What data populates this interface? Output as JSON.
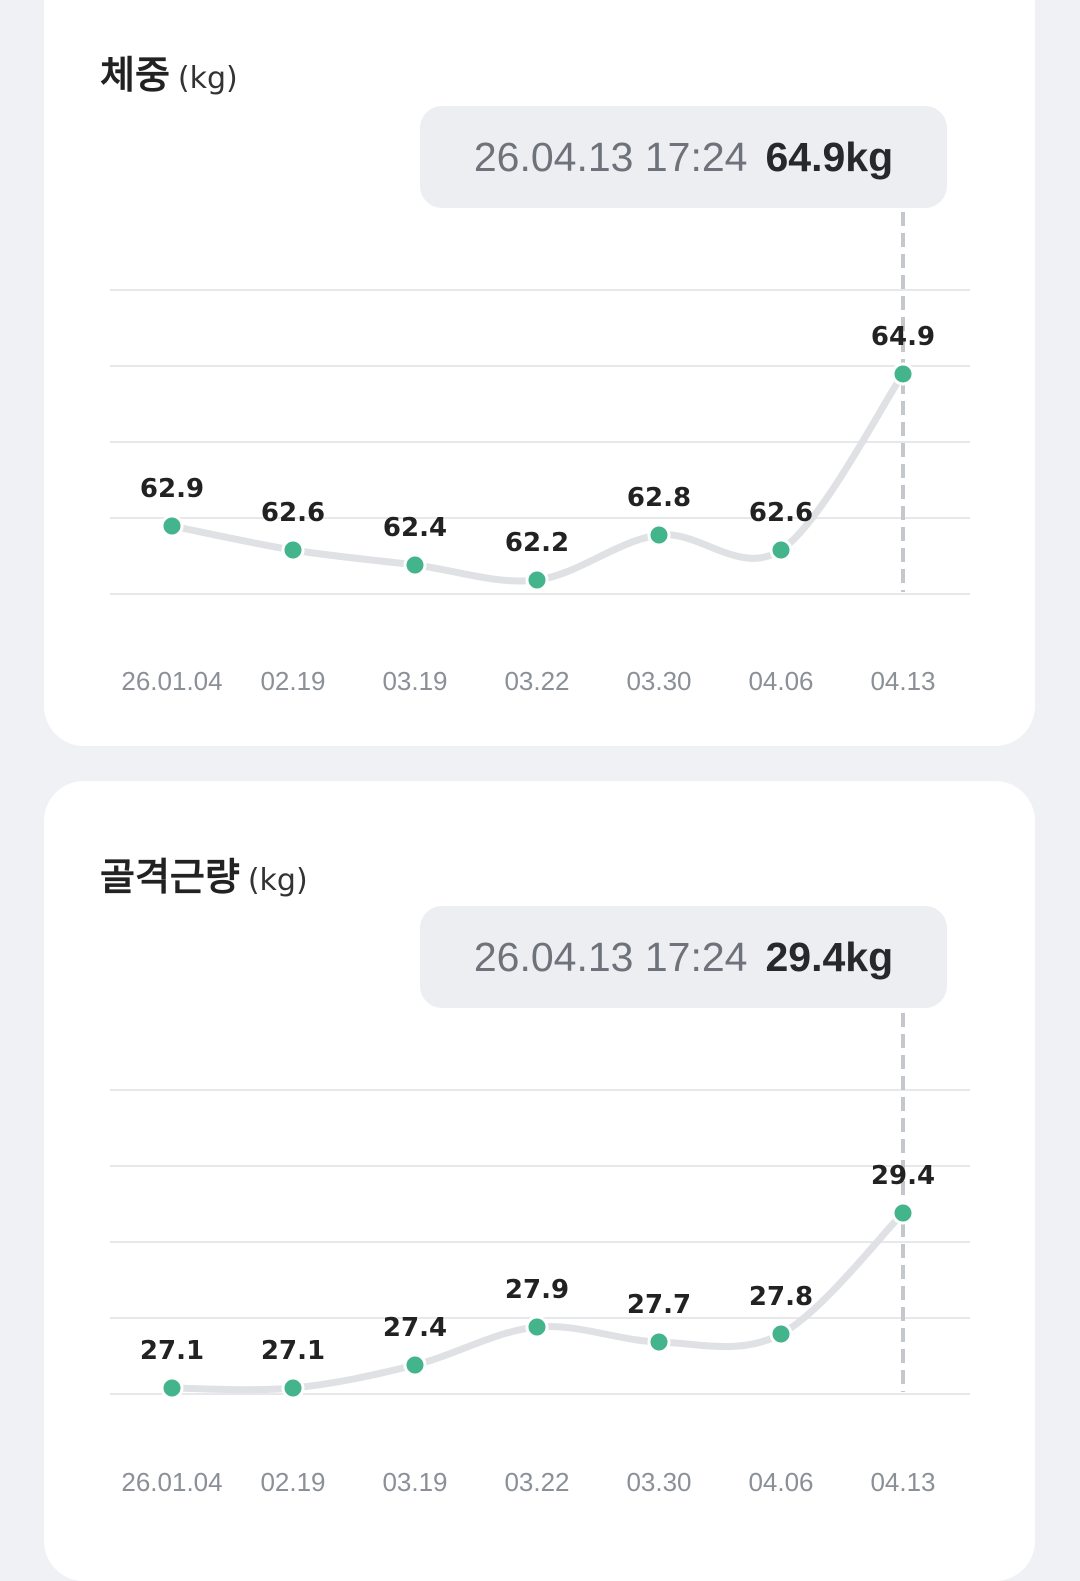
{
  "charts": [
    {
      "id": "weight",
      "title": "체중",
      "unit": "(kg)",
      "tooltip": {
        "date": "26.04.13 17:24",
        "value": "64.9kg"
      },
      "chart_data": {
        "type": "line",
        "categories": [
          "26.01.04",
          "02.19",
          "03.19",
          "03.22",
          "03.30",
          "04.06",
          "04.13"
        ],
        "values": [
          62.9,
          62.6,
          62.4,
          62.2,
          62.8,
          62.6,
          64.9
        ],
        "value_labels": [
          "62.9",
          "62.6",
          "62.4",
          "62.2",
          "62.8",
          "62.6",
          "64.9"
        ],
        "selected_index": 6,
        "point_color": "#43b48c",
        "line_color": "#dfe1e5",
        "grid": true
      }
    },
    {
      "id": "muscle",
      "title": "골격근량",
      "unit": "(kg)",
      "tooltip": {
        "date": "26.04.13 17:24",
        "value": "29.4kg"
      },
      "chart_data": {
        "type": "line",
        "categories": [
          "26.01.04",
          "02.19",
          "03.19",
          "03.22",
          "03.30",
          "04.06",
          "04.13"
        ],
        "values": [
          27.1,
          27.1,
          27.4,
          27.9,
          27.7,
          27.8,
          29.4
        ],
        "value_labels": [
          "27.1",
          "27.1",
          "27.4",
          "27.9",
          "27.7",
          "27.8",
          "29.4"
        ],
        "selected_index": 6,
        "point_color": "#43b48c",
        "line_color": "#dfe1e5",
        "grid": true
      }
    }
  ]
}
